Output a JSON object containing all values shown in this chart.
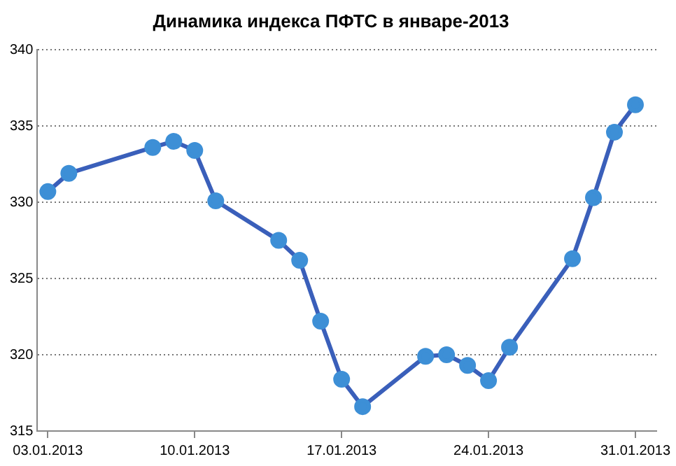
{
  "chart_data": {
    "type": "line",
    "title": "Динамика индекса ПФТС в январе-2013",
    "x": [
      "2013-01-03",
      "2013-01-04",
      "2013-01-08",
      "2013-01-09",
      "2013-01-10",
      "2013-01-11",
      "2013-01-14",
      "2013-01-15",
      "2013-01-16",
      "2013-01-17",
      "2013-01-18",
      "2013-01-21",
      "2013-01-22",
      "2013-01-23",
      "2013-01-24",
      "2013-01-25",
      "2013-01-28",
      "2013-01-29",
      "2013-01-30",
      "2013-01-31"
    ],
    "series": [
      {
        "color": "#3a5fba",
        "values": [
          330.7,
          331.9,
          333.6,
          334.0,
          333.4,
          330.1,
          327.5,
          326.2,
          322.2,
          318.4,
          316.6,
          319.9,
          320.0,
          319.3,
          318.3,
          320.5,
          326.3,
          330.3,
          334.6,
          336.4
        ]
      }
    ],
    "xlim": [
      "2013-01-02T12:00",
      "2013-02-01"
    ],
    "xticks": [
      {
        "value": "2013-01-03",
        "label": "03.01.2013"
      },
      {
        "value": "2013-01-10",
        "label": "10.01.2013"
      },
      {
        "value": "2013-01-17",
        "label": "17.01.2013"
      },
      {
        "value": "2013-01-24",
        "label": "24.01.2013"
      },
      {
        "value": "2013-01-31",
        "label": "31.01.2013"
      }
    ],
    "ylim": [
      315,
      340
    ],
    "yticks": [
      315,
      320,
      325,
      330,
      335,
      340
    ],
    "grid": "y",
    "legend": false,
    "marker": "circle",
    "line_style": "solid"
  }
}
